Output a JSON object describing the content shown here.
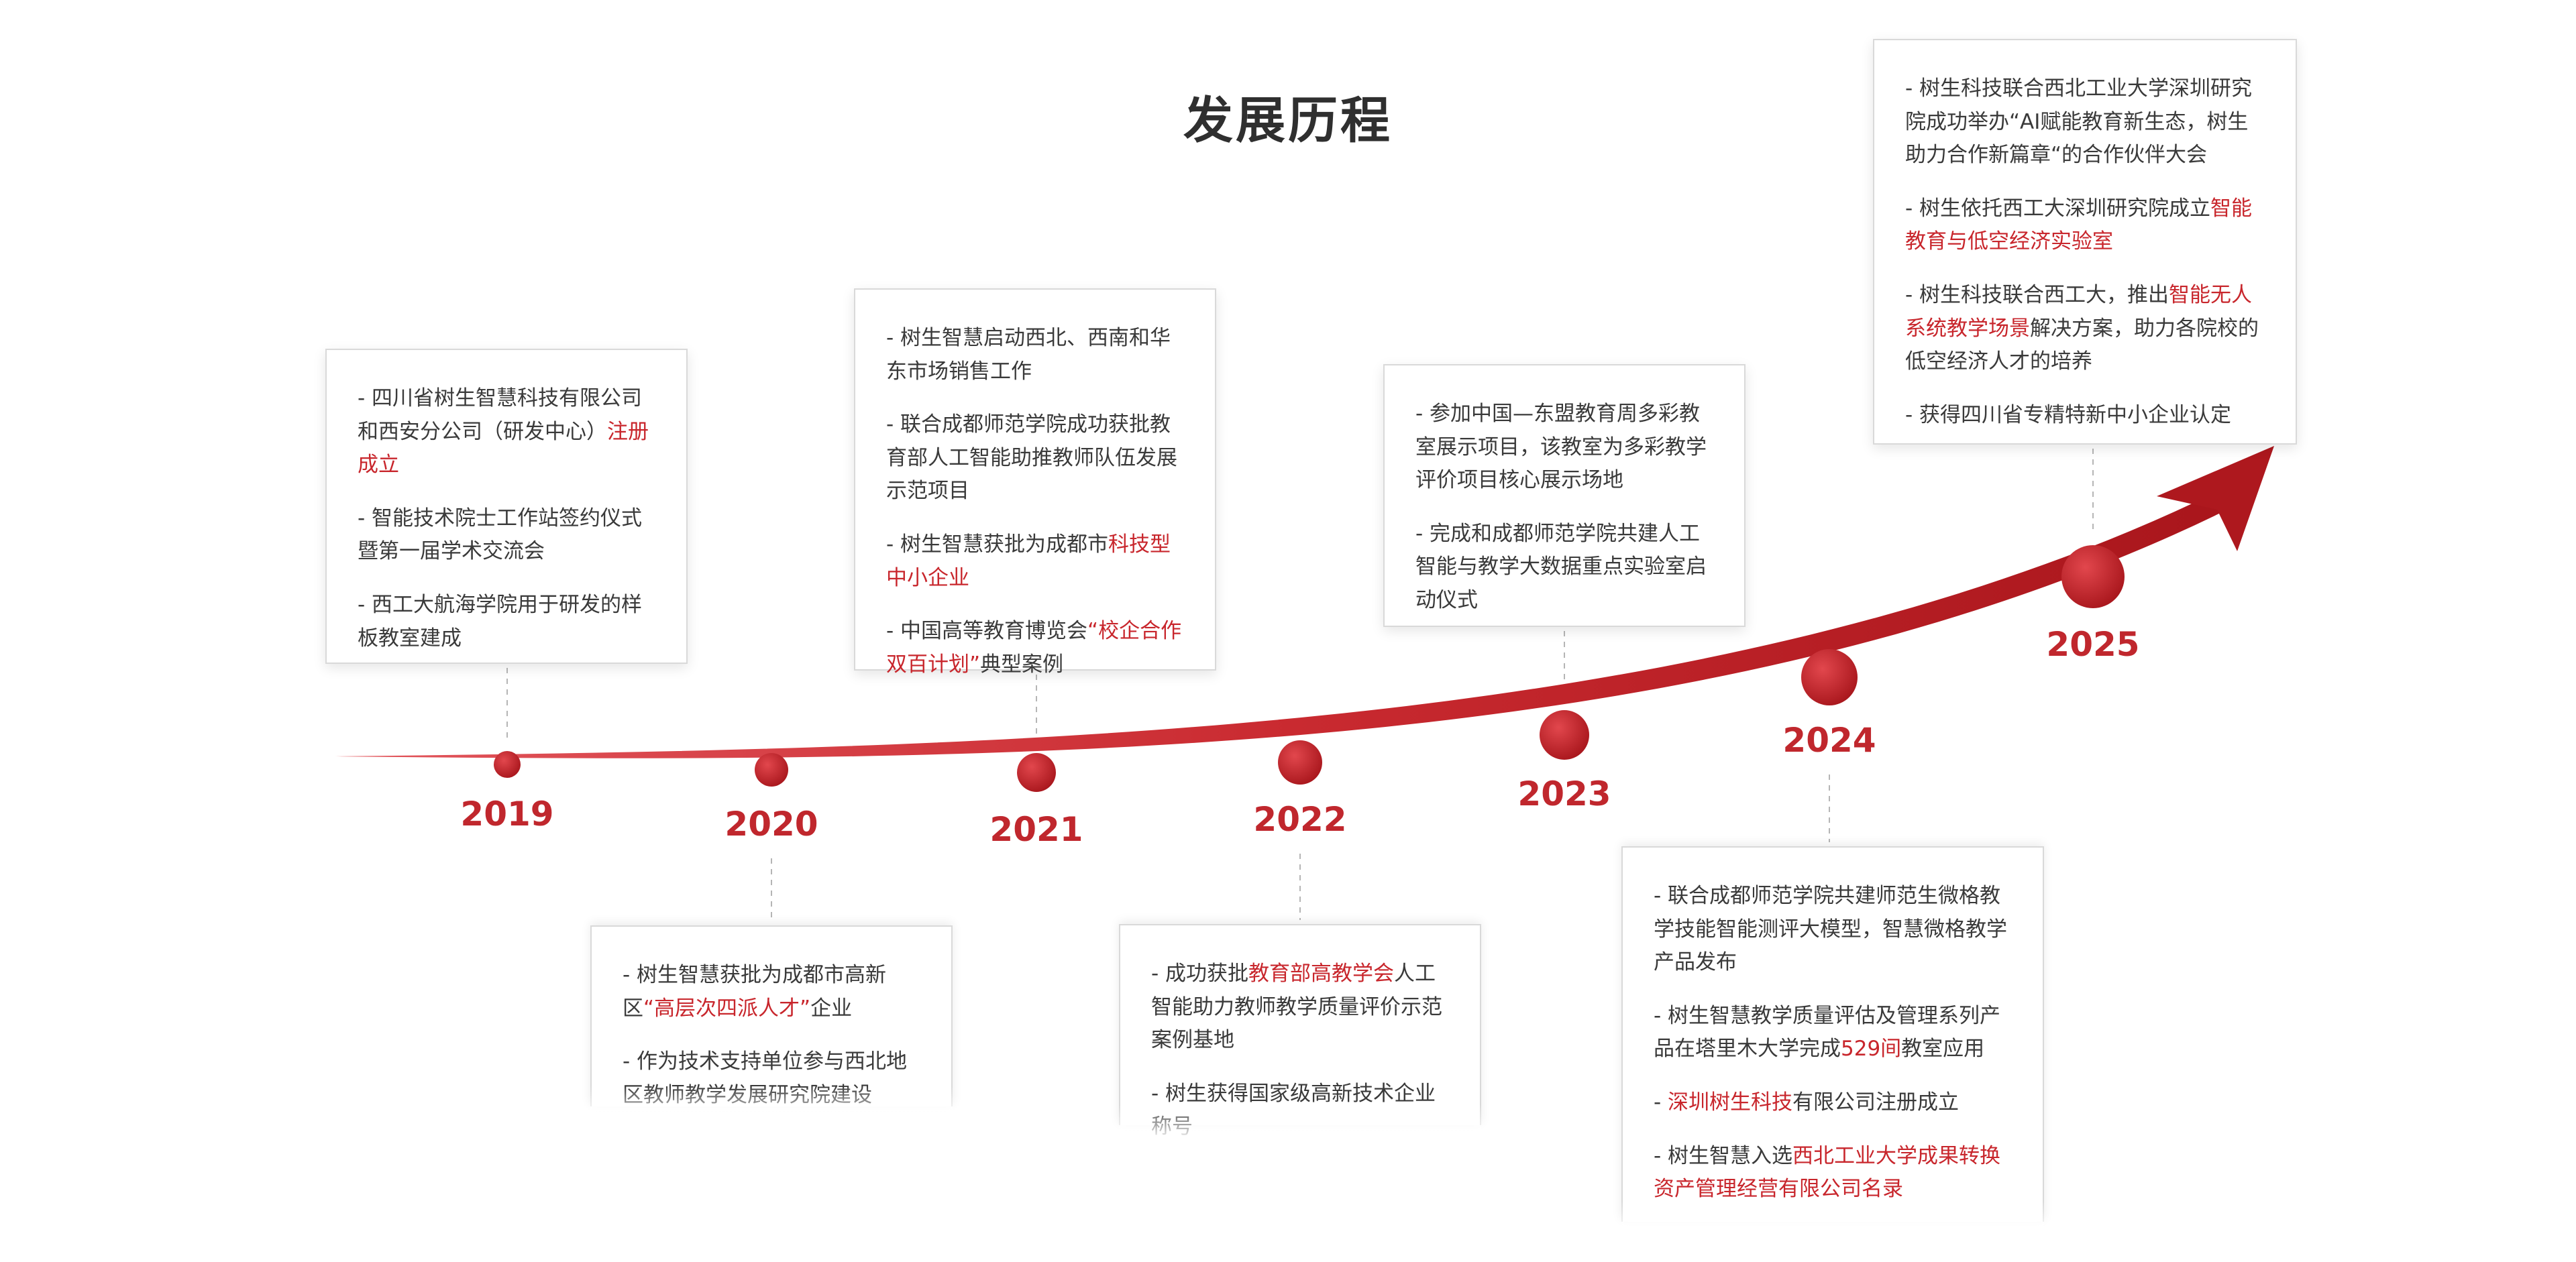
{
  "title": "发展历程",
  "accent_color": "#c0272d",
  "milestones": [
    {
      "year": "2019",
      "items": [
        [
          "- 四川省树生智慧科技有限公司和西安分公司（研发中心）",
          "注册成立",
          ""
        ],
        [
          "- 智能技术院士工作站签约仪式暨第一届学术交流会",
          "",
          ""
        ],
        [
          "- 西工大航海学院用于研发的样板教室建成",
          "",
          ""
        ]
      ]
    },
    {
      "year": "2020",
      "items": [
        [
          "- 树生智慧获批为成都市高新区",
          "“高层次四派人才”",
          "企业"
        ],
        [
          "- 作为技术支持单位参与西北地区教师教学发展研究院建设",
          "",
          ""
        ]
      ]
    },
    {
      "year": "2021",
      "items": [
        [
          "- 树生智慧启动西北、西南和华东市场销售工作",
          "",
          ""
        ],
        [
          "- 联合成都师范学院成功获批教育部人工智能助推教师队伍发展示范项目",
          "",
          ""
        ],
        [
          "- 树生智慧获批为成都市",
          "科技型中小企业",
          ""
        ],
        [
          "- 中国高等教育博览会",
          "“校企合作 双百计划”",
          "典型案例"
        ]
      ]
    },
    {
      "year": "2022",
      "items": [
        [
          "- 成功获批",
          "教育部高教学会",
          "人工智能助力教师教学质量评价示范案例基地"
        ],
        [
          "- 树生获得国家级高新技术企业称号",
          "",
          ""
        ]
      ]
    },
    {
      "year": "2023",
      "items": [
        [
          "- 参加中国—东盟教育周多彩教室展示项目，该教室为多彩教学评价项目核心展示场地",
          "",
          ""
        ],
        [
          "- 完成和成都师范学院共建人工智能与教学大数据重点实验室启动仪式",
          "",
          ""
        ]
      ]
    },
    {
      "year": "2024",
      "items": [
        [
          "- 联合成都师范学院共建师范生微格教学技能智能测评大模型，智慧微格教学产品发布",
          "",
          ""
        ],
        [
          "- 树生智慧教学质量评估及管理系列产品在塔里木大学完成",
          "529间",
          "教室应用"
        ],
        [
          "- ",
          "深圳树生科技",
          "有限公司注册成立"
        ],
        [
          "- 树生智慧入选",
          "西北工业大学成果转换资产管理经营有限公司名录",
          ""
        ]
      ]
    },
    {
      "year": "2025",
      "items": [
        [
          "- 树生科技联合西北工业大学深圳研究院成功举办“AI赋能教育新生态，树生助力合作新篇章“的合作伙伴大会",
          "",
          ""
        ],
        [
          "- 树生依托西工大深圳研究院成立",
          "智能教育与低空经济实验室",
          ""
        ],
        [
          "- 树生科技联合西工大，推出",
          "智能无人系统教学场景",
          "解决方案，助力各院校的低空经济人才的培养"
        ],
        [
          "- 获得四川省专精特新中小企业认定",
          "",
          ""
        ]
      ]
    }
  ]
}
